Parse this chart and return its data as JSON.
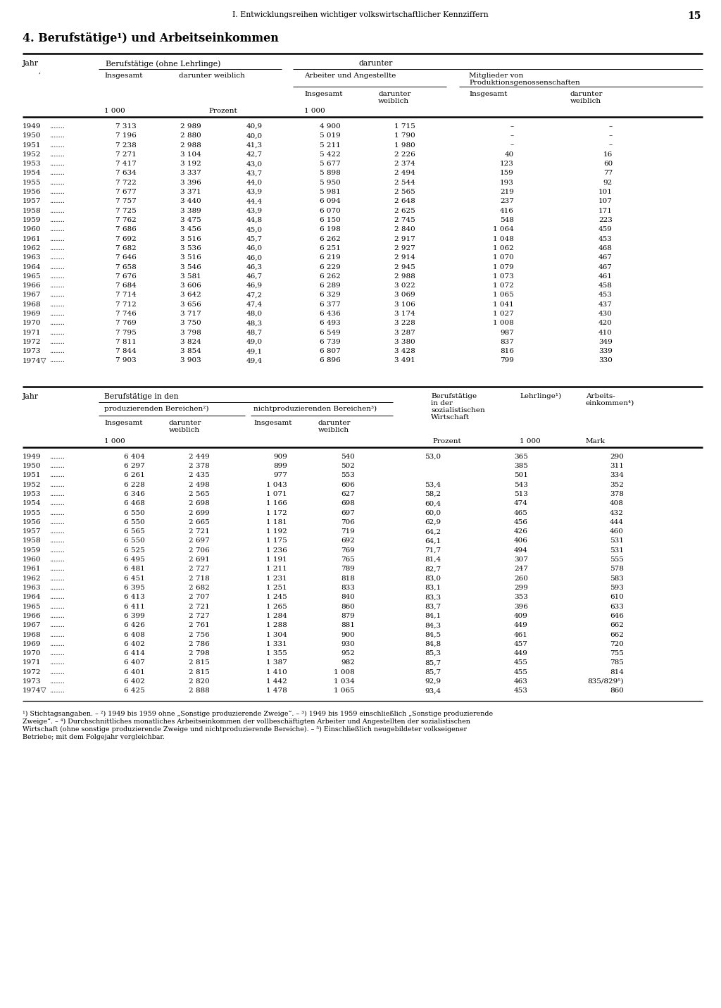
{
  "page_header": "I. Entwicklungsreihen wichtiger volkswirtschaftlicher Kennziffern",
  "page_number": "15",
  "section_title": "4. Berufstätige¹) und Arbeitseinkommen",
  "table1_rows": [
    [
      "1949",
      "7 313",
      "2 989",
      "40,9",
      "4 900",
      "1 715",
      "–",
      "–"
    ],
    [
      "1950",
      "7 196",
      "2 880",
      "40,0",
      "5 019",
      "1 790",
      "–",
      "–"
    ],
    [
      "1951",
      "7 238",
      "2 988",
      "41,3",
      "5 211",
      "1 980",
      "–",
      "–"
    ],
    [
      "1952",
      "7 271",
      "3 104",
      "42,7",
      "5 422",
      "2 226",
      "40",
      "16"
    ],
    [
      "1953",
      "7 417",
      "3 192",
      "43,0",
      "5 677",
      "2 374",
      "123",
      "60"
    ],
    [
      "1954",
      "7 634",
      "3 337",
      "43,7",
      "5 898",
      "2 494",
      "159",
      "77"
    ],
    [
      "1955",
      "7 722",
      "3 396",
      "44,0",
      "5 950",
      "2 544",
      "193",
      "92"
    ],
    [
      "1956",
      "7 677",
      "3 371",
      "43,9",
      "5 981",
      "2 565",
      "219",
      "101"
    ],
    [
      "1957",
      "7 757",
      "3 440",
      "44,4",
      "6 094",
      "2 648",
      "237",
      "107"
    ],
    [
      "1958",
      "7 725",
      "3 389",
      "43,9",
      "6 070",
      "2 625",
      "416",
      "171"
    ],
    [
      "1959",
      "7 762",
      "3 475",
      "44,8",
      "6 150",
      "2 745",
      "548",
      "223"
    ],
    [
      "1960",
      "7 686",
      "3 456",
      "45,0",
      "6 198",
      "2 840",
      "1 064",
      "459"
    ],
    [
      "1961",
      "7 692",
      "3 516",
      "45,7",
      "6 262",
      "2 917",
      "1 048",
      "453"
    ],
    [
      "1962",
      "7 682",
      "3 536",
      "46,0",
      "6 251",
      "2 927",
      "1 062",
      "468"
    ],
    [
      "1963",
      "7 646",
      "3 516",
      "46,0",
      "6 219",
      "2 914",
      "1 070",
      "467"
    ],
    [
      "1964",
      "7 658",
      "3 546",
      "46,3",
      "6 229",
      "2 945",
      "1 079",
      "467"
    ],
    [
      "1965",
      "7 676",
      "3 581",
      "46,7",
      "6 262",
      "2 988",
      "1 073",
      "461"
    ],
    [
      "1966",
      "7 684",
      "3 606",
      "46,9",
      "6 289",
      "3 022",
      "1 072",
      "458"
    ],
    [
      "1967",
      "7 714",
      "3 642",
      "47,2",
      "6 329",
      "3 069",
      "1 065",
      "453"
    ],
    [
      "1968",
      "7 712",
      "3 656",
      "47,4",
      "6 377",
      "3 106",
      "1 041",
      "437"
    ],
    [
      "1969",
      "7 746",
      "3 717",
      "48,0",
      "6 436",
      "3 174",
      "1 027",
      "430"
    ],
    [
      "1970",
      "7 769",
      "3 750",
      "48,3",
      "6 493",
      "3 228",
      "1 008",
      "420"
    ],
    [
      "1971",
      "7 795",
      "3 798",
      "48,7",
      "6 549",
      "3 287",
      "987",
      "410"
    ],
    [
      "1972",
      "7 811",
      "3 824",
      "49,0",
      "6 739",
      "3 380",
      "837",
      "349"
    ],
    [
      "1973",
      "7 844",
      "3 854",
      "49,1",
      "6 807",
      "3 428",
      "816",
      "339"
    ],
    [
      "1974▽",
      "7 903",
      "3 903",
      "49,4",
      "6 896",
      "3 491",
      "799",
      "330"
    ]
  ],
  "table2_rows": [
    [
      "1949",
      "6 404",
      "2 449",
      "909",
      "540",
      "53,0",
      "365",
      "290"
    ],
    [
      "1950",
      "6 297",
      "2 378",
      "899",
      "502",
      "",
      "385",
      "311"
    ],
    [
      "1951",
      "6 261",
      "2 435",
      "977",
      "553",
      "",
      "501",
      "334"
    ],
    [
      "1952",
      "6 228",
      "2 498",
      "1 043",
      "606",
      "53,4",
      "543",
      "352"
    ],
    [
      "1953",
      "6 346",
      "2 565",
      "1 071",
      "627",
      "58,2",
      "513",
      "378"
    ],
    [
      "1954",
      "6 468",
      "2 698",
      "1 166",
      "698",
      "60,4",
      "474",
      "408"
    ],
    [
      "1955",
      "6 550",
      "2 699",
      "1 172",
      "697",
      "60,0",
      "465",
      "432"
    ],
    [
      "1956",
      "6 550",
      "2 665",
      "1 181",
      "706",
      "62,9",
      "456",
      "444"
    ],
    [
      "1957",
      "6 565",
      "2 721",
      "1 192",
      "719",
      "64,2",
      "426",
      "460"
    ],
    [
      "1958",
      "6 550",
      "2 697",
      "1 175",
      "692",
      "64,1",
      "406",
      "531"
    ],
    [
      "1959",
      "6 525",
      "2 706",
      "1 236",
      "769",
      "71,7",
      "494",
      "531"
    ],
    [
      "1960",
      "6 495",
      "2 691",
      "1 191",
      "765",
      "81,4",
      "307",
      "555"
    ],
    [
      "1961",
      "6 481",
      "2 727",
      "1 211",
      "789",
      "82,7",
      "247",
      "578"
    ],
    [
      "1962",
      "6 451",
      "2 718",
      "1 231",
      "818",
      "83,0",
      "260",
      "583"
    ],
    [
      "1963",
      "6 395",
      "2 682",
      "1 251",
      "833",
      "83,1",
      "299",
      "593"
    ],
    [
      "1964",
      "6 413",
      "2 707",
      "1 245",
      "840",
      "83,3",
      "353",
      "610"
    ],
    [
      "1965",
      "6 411",
      "2 721",
      "1 265",
      "860",
      "83,7",
      "396",
      "633"
    ],
    [
      "1966",
      "6 399",
      "2 727",
      "1 284",
      "879",
      "84,1",
      "409",
      "646"
    ],
    [
      "1967",
      "6 426",
      "2 761",
      "1 288",
      "881",
      "84,3",
      "449",
      "662"
    ],
    [
      "1968",
      "6 408",
      "2 756",
      "1 304",
      "900",
      "84,5",
      "461",
      "662"
    ],
    [
      "1969",
      "6 402",
      "2 786",
      "1 331",
      "930",
      "84,8",
      "457",
      "720"
    ],
    [
      "1970",
      "6 414",
      "2 798",
      "1 355",
      "952",
      "85,3",
      "449",
      "755"
    ],
    [
      "1971",
      "6 407",
      "2 815",
      "1 387",
      "982",
      "85,7",
      "455",
      "785"
    ],
    [
      "1972",
      "6 401",
      "2 815",
      "1 410",
      "1 008",
      "85,7",
      "455",
      "814"
    ],
    [
      "1973",
      "6 402",
      "2 820",
      "1 442",
      "1 034",
      "92,9",
      "463",
      "835/829⁵)"
    ],
    [
      "1974▽",
      "6 425",
      "2 888",
      "1 478",
      "1 065",
      "93,4",
      "453",
      "860"
    ]
  ],
  "footnote_line1": "¹) Stichtagsangaben. – ²) 1949 bis 1959 ohne „Sonstige produzierende Zweige“. – ³) 1949 bis 1959 einschließlich „Sonstige produzierende",
  "footnote_line2": "Zweige“. – ⁴) Durchschnittliches monatliches Arbeitseinkommen der vollbeschäftigten Arbeiter und Angestellten der sozialistischen",
  "footnote_line3": "Wirtschaft (ohne sonstige produzierende Zweige und nichtproduzierende Bereiche). – ⁵) Einschließlich neugebildeter volkseigener",
  "footnote_line4": "Betriebe; mit dem Folgejahr vergleichbar."
}
